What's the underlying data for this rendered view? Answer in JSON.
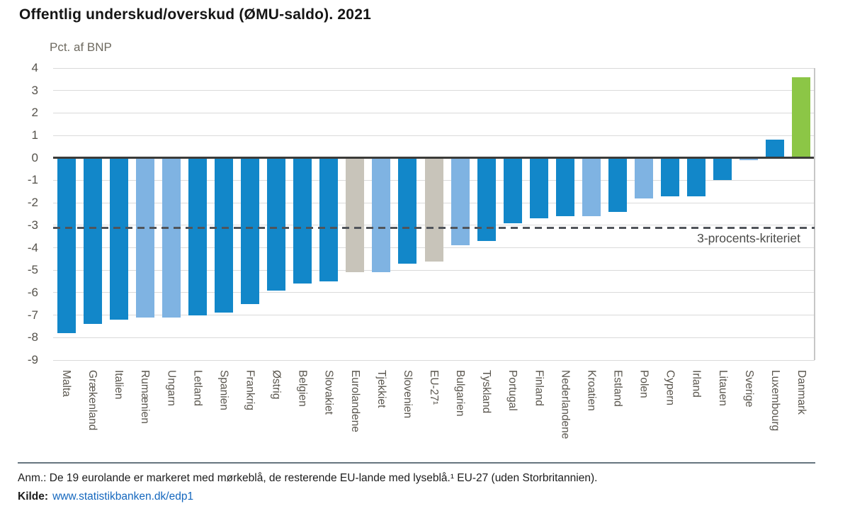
{
  "title": "Offentlig underskud/overskud (ØMU-saldo). 2021",
  "y_axis_unit": "Pct. af BNP",
  "chart_data": {
    "type": "bar",
    "title": "Offentlig underskud/overskud (ØMU-saldo). 2021",
    "xlabel": "",
    "ylabel": "Pct. af BNP",
    "ylim": [
      -9,
      4
    ],
    "y_ticks": [
      4,
      3,
      2,
      1,
      0,
      -1,
      -2,
      -3,
      -4,
      -5,
      -6,
      -7,
      -8,
      -9
    ],
    "grid": true,
    "legend_position": "none",
    "categories": [
      "Malta",
      "Grækenland",
      "Italien",
      "Rumænien",
      "Ungarn",
      "Letland",
      "Spanien",
      "Frankrig",
      "Østrig",
      "Belgien",
      "Slovakiet",
      "Eurolandene",
      "Tjekkiet",
      "Slovenien",
      "EU-27¹",
      "Bulgarien",
      "Tyskland",
      "Portugal",
      "Finland",
      "Nederlandene",
      "Kroatien",
      "Estland",
      "Polen",
      "Cypern",
      "Irland",
      "Litauen",
      "Sverige",
      "Luxembourg",
      "Danmark"
    ],
    "values": [
      -7.8,
      -7.4,
      -7.2,
      -7.1,
      -7.1,
      -7.0,
      -6.9,
      -6.5,
      -5.9,
      -5.6,
      -5.5,
      -5.1,
      -5.1,
      -4.7,
      -4.6,
      -3.9,
      -3.7,
      -2.9,
      -2.7,
      -2.6,
      -2.6,
      -2.4,
      -1.8,
      -1.7,
      -1.7,
      -1.0,
      -0.1,
      0.8,
      3.6
    ],
    "groups": [
      "euro",
      "euro",
      "euro",
      "non_euro",
      "non_euro",
      "euro",
      "euro",
      "euro",
      "euro",
      "euro",
      "euro",
      "aggregate",
      "non_euro",
      "euro",
      "aggregate",
      "non_euro",
      "euro",
      "euro",
      "euro",
      "euro",
      "non_euro",
      "euro",
      "non_euro",
      "euro",
      "euro",
      "euro",
      "non_euro",
      "euro",
      "denmark"
    ],
    "colors": {
      "euro": "#1287C9",
      "non_euro": "#7FB3E2",
      "aggregate": "#C8C4BA",
      "denmark": "#8CC646"
    },
    "reference_line": {
      "value": -3,
      "label": "3-procents-kriteriet"
    }
  },
  "footer": {
    "note": "Anm.: De 19 eurolande er markeret med mørkeblå, de resterende EU-lande med lyseblå.¹ EU-27 (uden Storbritannien).",
    "source_label": "Kilde:",
    "source_link": "www.statistikbanken.dk/edp1"
  }
}
